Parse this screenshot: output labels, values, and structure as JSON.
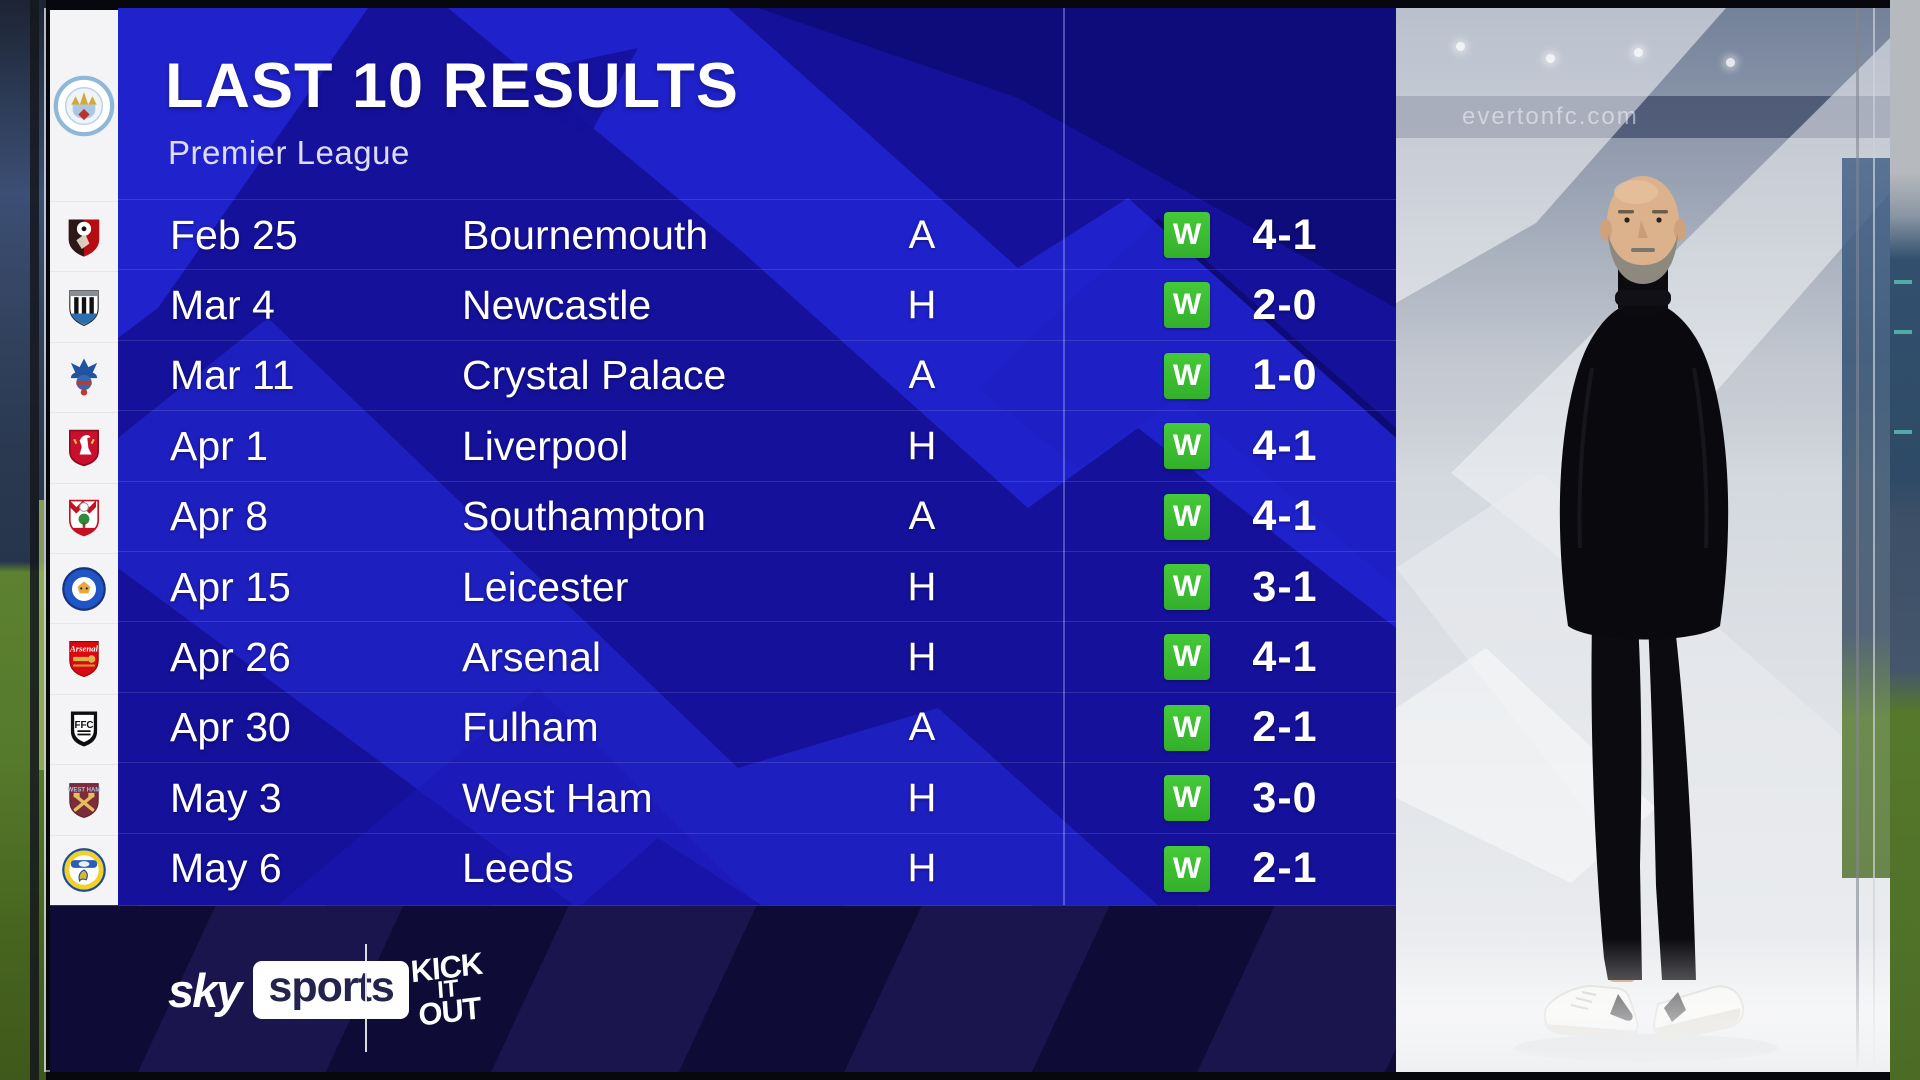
{
  "header": {
    "title": "LAST 10 RESULTS",
    "subtitle": "Premier League"
  },
  "club_column": {
    "club": {
      "team": "Manchester City",
      "icon": "manchester-city-crest"
    },
    "opponent_crests": [
      {
        "team": "Bournemouth",
        "icon": "bournemouth-crest"
      },
      {
        "team": "Newcastle",
        "icon": "newcastle-crest"
      },
      {
        "team": "Crystal Palace",
        "icon": "crystal-palace-crest"
      },
      {
        "team": "Liverpool",
        "icon": "liverpool-crest"
      },
      {
        "team": "Southampton",
        "icon": "southampton-crest"
      },
      {
        "team": "Leicester",
        "icon": "leicester-crest"
      },
      {
        "team": "Arsenal",
        "icon": "arsenal-crest"
      },
      {
        "team": "Fulham",
        "icon": "fulham-crest"
      },
      {
        "team": "West Ham",
        "icon": "west-ham-crest"
      },
      {
        "team": "Leeds",
        "icon": "leeds-crest"
      }
    ]
  },
  "results": {
    "rows": [
      {
        "date": "Feb 25",
        "opponent": "Bournemouth",
        "venue": "A",
        "outcome": "W",
        "score": "4-1"
      },
      {
        "date": "Mar 4",
        "opponent": "Newcastle",
        "venue": "H",
        "outcome": "W",
        "score": "2-0"
      },
      {
        "date": "Mar 11",
        "opponent": "Crystal Palace",
        "venue": "A",
        "outcome": "W",
        "score": "1-0"
      },
      {
        "date": "Apr 1",
        "opponent": "Liverpool",
        "venue": "H",
        "outcome": "W",
        "score": "4-1"
      },
      {
        "date": "Apr 8",
        "opponent": "Southampton",
        "venue": "A",
        "outcome": "W",
        "score": "4-1"
      },
      {
        "date": "Apr 15",
        "opponent": "Leicester",
        "venue": "H",
        "outcome": "W",
        "score": "3-1"
      },
      {
        "date": "Apr 26",
        "opponent": "Arsenal",
        "venue": "H",
        "outcome": "W",
        "score": "4-1"
      },
      {
        "date": "Apr 30",
        "opponent": "Fulham",
        "venue": "A",
        "outcome": "W",
        "score": "2-1"
      },
      {
        "date": "May 3",
        "opponent": "West Ham",
        "venue": "H",
        "outcome": "W",
        "score": "3-0"
      },
      {
        "date": "May 6",
        "opponent": "Leeds",
        "venue": "H",
        "outcome": "W",
        "score": "2-1"
      }
    ]
  },
  "footer": {
    "sky_word": "sky",
    "sports_word": "sports",
    "kick_it_out_lines": [
      "KICK",
      "IT",
      "OUT"
    ]
  },
  "photo_panel": {
    "stadium_banner_text": "evertonfc.com"
  },
  "colors": {
    "panel_base": "#15119b",
    "panel_bright": "#2125d2",
    "panel_dark": "#0d0b74",
    "footer_base": "#161247",
    "win_green": "#3cbf33",
    "crest_strip": "#f4f4f6"
  }
}
